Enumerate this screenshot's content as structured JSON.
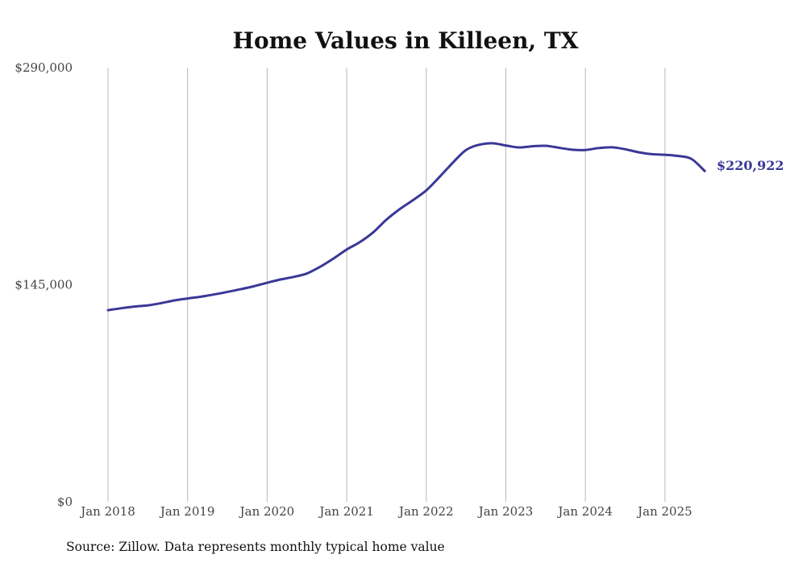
{
  "chart_data": {
    "type": "line",
    "title": "Home Values in Killeen, TX",
    "xlabel": "",
    "ylabel": "",
    "ylim": [
      0,
      290000
    ],
    "yticks": [
      0,
      145000,
      290000
    ],
    "ytick_labels": [
      "$0",
      "$145,000",
      "$290,000"
    ],
    "xlim": [
      "2018-01",
      "2025-07"
    ],
    "xticks": [
      "2018-01",
      "2019-01",
      "2020-01",
      "2021-01",
      "2022-01",
      "2023-01",
      "2024-01",
      "2025-01"
    ],
    "xtick_labels": [
      "Jan 2018",
      "Jan 2019",
      "Jan 2020",
      "Jan 2021",
      "Jan 2022",
      "Jan 2023",
      "Jan 2024",
      "Jan 2025"
    ],
    "grid": "vertical",
    "line_color": "#3a3897",
    "end_label": "$220,922",
    "source": "Source: Zillow. Data represents monthly typical home value",
    "series": [
      {
        "x": [
          "2018-01",
          "2018-03",
          "2018-05",
          "2018-07",
          "2018-09",
          "2018-11",
          "2019-01",
          "2019-03",
          "2019-05",
          "2019-07",
          "2019-09",
          "2019-11",
          "2020-01",
          "2020-03",
          "2020-05",
          "2020-07",
          "2020-09",
          "2020-11",
          "2021-01",
          "2021-03",
          "2021-05",
          "2021-07",
          "2021-09",
          "2021-11",
          "2022-01",
          "2022-03",
          "2022-05",
          "2022-07",
          "2022-09",
          "2022-11",
          "2023-01",
          "2023-03",
          "2023-05",
          "2023-07",
          "2023-09",
          "2023-11",
          "2024-01",
          "2024-03",
          "2024-05",
          "2024-07",
          "2024-09",
          "2024-11",
          "2025-01",
          "2025-03",
          "2025-05",
          "2025-07"
        ],
        "values": [
          128000,
          129300,
          130400,
          131200,
          132700,
          134500,
          135800,
          137000,
          138500,
          140200,
          142000,
          144000,
          146300,
          148500,
          150200,
          152500,
          157000,
          162500,
          168500,
          173500,
          180000,
          188500,
          195500,
          201500,
          208000,
          217000,
          226500,
          235000,
          238500,
          239500,
          238000,
          236700,
          237500,
          237800,
          236500,
          235200,
          235000,
          236300,
          236800,
          235500,
          233500,
          232200,
          231800,
          231000,
          229000,
          220922
        ]
      }
    ]
  }
}
